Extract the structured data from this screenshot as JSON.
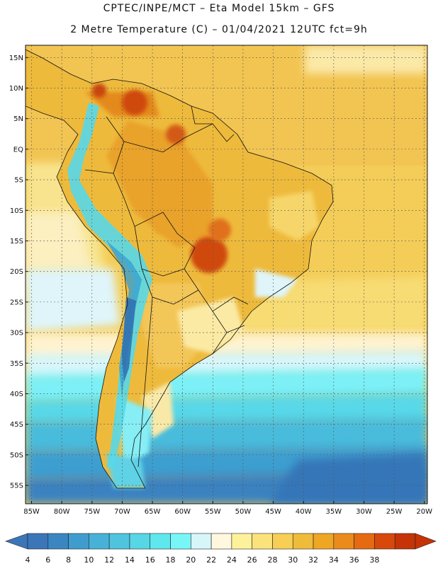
{
  "header": {
    "line1": "CPTEC/INPE/MCT –  Eta Model 15km – GFS",
    "line2": "2 Metre Temperature (C) – 01/04/2021 12UTC fct=9h"
  },
  "axes": {
    "lat_labels": [
      "15N",
      "10N",
      "5N",
      "EQ",
      "5S",
      "10S",
      "15S",
      "20S",
      "25S",
      "30S",
      "35S",
      "40S",
      "45S",
      "50S",
      "55S"
    ],
    "lat_values": [
      15,
      10,
      5,
      0,
      -5,
      -10,
      -15,
      -20,
      -25,
      -30,
      -35,
      -40,
      -45,
      -50,
      -55
    ],
    "lon_labels": [
      "85W",
      "80W",
      "75W",
      "70W",
      "65W",
      "60W",
      "55W",
      "50W",
      "45W",
      "40W",
      "35W",
      "30W",
      "25W",
      "20W"
    ],
    "lon_values": [
      -85,
      -80,
      -75,
      -70,
      -65,
      -60,
      -55,
      -50,
      -45,
      -40,
      -35,
      -30,
      -25,
      -20
    ],
    "lat_range": [
      -58,
      17
    ],
    "lon_range": [
      -86,
      -19.5
    ]
  },
  "colorbar": {
    "labels": [
      "4",
      "6",
      "8",
      "10",
      "12",
      "14",
      "16",
      "18",
      "20",
      "22",
      "24",
      "26",
      "28",
      "30",
      "32",
      "34",
      "36",
      "38"
    ],
    "colors": [
      "#3b76b8",
      "#3a86c2",
      "#3f9ccf",
      "#48b1d8",
      "#4fc4df",
      "#57d6e6",
      "#5fe7ee",
      "#77f6f8",
      "#d6f6fa",
      "#fff8de",
      "#fdf29a",
      "#fbe37b",
      "#f6cf54",
      "#efbb3a",
      "#eea623",
      "#eb8b1b",
      "#e56a12",
      "#d8480b",
      "#c53307"
    ],
    "under_color": "#3b76b8",
    "over_color": "#c53307"
  }
}
